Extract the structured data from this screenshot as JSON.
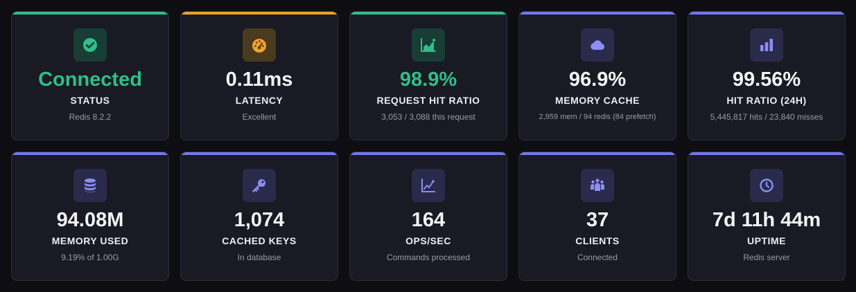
{
  "colors": {
    "green": "#2fbf8a",
    "orange": "#f2a12b",
    "indigo": "#7478f0",
    "tile_green": "#173d35",
    "tile_orange": "#4a3a1e",
    "tile_indigo": "#2a2b4a"
  },
  "cards": [
    {
      "icon": "check-circle-icon",
      "value": "Connected",
      "label": "STATUS",
      "sub": "Redis 8.2.2"
    },
    {
      "icon": "speedometer-icon",
      "value": "0.11ms",
      "label": "LATENCY",
      "sub": "Excellent"
    },
    {
      "icon": "area-chart-icon",
      "value": "98.9%",
      "label": "REQUEST HIT RATIO",
      "sub": "3,053 / 3,088 this request"
    },
    {
      "icon": "cloud-icon",
      "value": "96.9%",
      "label": "MEMORY CACHE",
      "sub": "2,959 mem / 94 redis (84 prefetch)"
    },
    {
      "icon": "bar-chart-icon",
      "value": "99.56%",
      "label": "HIT RATIO (24H)",
      "sub": "5,445,817 hits / 23,840 misses"
    },
    {
      "icon": "database-icon",
      "value": "94.08M",
      "label": "MEMORY USED",
      "sub": "9.19% of 1.00G"
    },
    {
      "icon": "key-icon",
      "value": "1,074",
      "label": "CACHED KEYS",
      "sub": "In database"
    },
    {
      "icon": "line-chart-icon",
      "value": "164",
      "label": "OPS/SEC",
      "sub": "Commands processed"
    },
    {
      "icon": "users-icon",
      "value": "37",
      "label": "CLIENTS",
      "sub": "Connected"
    },
    {
      "icon": "clock-icon",
      "value": "7d 11h 44m",
      "label": "UPTIME",
      "sub": "Redis server"
    }
  ]
}
